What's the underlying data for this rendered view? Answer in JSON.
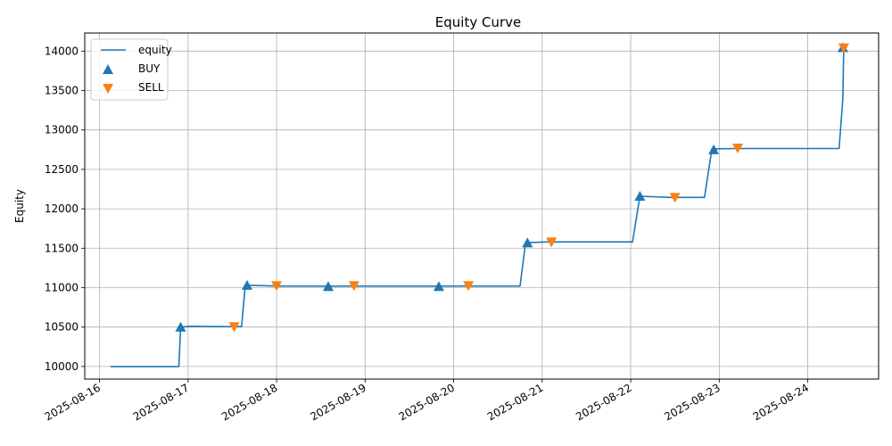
{
  "chart_data": {
    "type": "line",
    "title": "Equity Curve",
    "xlabel": "",
    "ylabel": "Equity",
    "xlim": [
      "2025-08-15T20:00",
      "2025-08-24T19:12"
    ],
    "ylim": [
      9840,
      14230
    ],
    "x_ticks": [
      "2025-08-16",
      "2025-08-17",
      "2025-08-18",
      "2025-08-19",
      "2025-08-20",
      "2025-08-21",
      "2025-08-22",
      "2025-08-23",
      "2025-08-24"
    ],
    "y_ticks": [
      10000,
      10500,
      11000,
      11500,
      12000,
      12500,
      13000,
      13500,
      14000
    ],
    "grid": true,
    "legend_position": "top-left",
    "colors": {
      "equity": "#1f77b4",
      "buy": "#1f77b4",
      "sell": "#ff7f0e"
    },
    "series": [
      {
        "name": "equity",
        "kind": "line",
        "x": [
          "2025-08-16T03:00",
          "2025-08-16T21:30",
          "2025-08-16T22:00",
          "2025-08-17T00:30",
          "2025-08-17T12:00",
          "2025-08-17T14:30",
          "2025-08-17T15:30",
          "2025-08-17T16:30",
          "2025-08-18T00:00",
          "2025-08-18T14:00",
          "2025-08-18T21:00",
          "2025-08-19T20:00",
          "2025-08-20T02:00",
          "2025-08-20T18:00",
          "2025-08-20T19:30",
          "2025-08-21T01:30",
          "2025-08-21T12:00",
          "2025-08-22T00:30",
          "2025-08-22T02:30",
          "2025-08-22T11:00",
          "2025-08-22T20:00",
          "2025-08-22T22:00",
          "2025-08-23T04:30",
          "2025-08-24T08:30",
          "2025-08-24T09:30",
          "2025-08-24T09:45"
        ],
        "y": [
          10000,
          10000,
          10500,
          10510,
          10505,
          10505,
          11020,
          11030,
          11020,
          11020,
          11020,
          11020,
          11020,
          11020,
          11570,
          11580,
          11580,
          11580,
          12160,
          12145,
          12145,
          12760,
          12765,
          12765,
          13400,
          14050
        ]
      },
      {
        "name": "BUY",
        "kind": "marker-up",
        "x": [
          "2025-08-16T22:00",
          "2025-08-17T16:00",
          "2025-08-18T14:00",
          "2025-08-19T20:00",
          "2025-08-20T20:00",
          "2025-08-22T02:30",
          "2025-08-22T22:30",
          "2025-08-24T09:30"
        ],
        "y": [
          10505,
          11035,
          11020,
          11020,
          11575,
          12165,
          12755,
          14050
        ]
      },
      {
        "name": "SELL",
        "kind": "marker-down",
        "x": [
          "2025-08-17T12:30",
          "2025-08-18T00:00",
          "2025-08-18T21:00",
          "2025-08-20T04:00",
          "2025-08-21T02:30",
          "2025-08-22T12:00",
          "2025-08-23T05:00",
          "2025-08-24T09:45"
        ],
        "y": [
          10500,
          11020,
          11020,
          11020,
          11575,
          12140,
          12765,
          14035
        ]
      }
    ]
  }
}
